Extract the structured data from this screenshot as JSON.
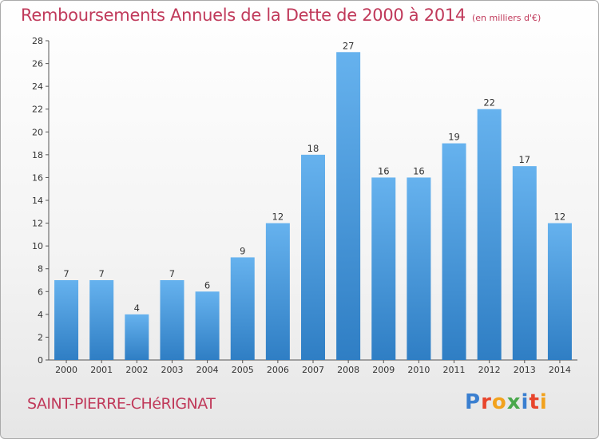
{
  "title": "Remboursements Annuels de la Dette de 2000 à 2014",
  "subtitle": "(en milliers d'€)",
  "commune": "SAINT-PIERRE-CHéRIGNAT",
  "logo": {
    "letters": [
      "P",
      "r",
      "o",
      "x",
      "i",
      "t",
      "i"
    ],
    "colors": [
      "#3a7fd0",
      "#e8452c",
      "#f2a21d",
      "#4aa84c",
      "#3a7fd0",
      "#e8452c",
      "#f2a21d"
    ]
  },
  "colors": {
    "bar_top": "#66b2ee",
    "bar_bottom": "#2f7ec4",
    "title": "#c0395a"
  },
  "chart_data": {
    "type": "bar",
    "categories": [
      "2000",
      "2001",
      "2002",
      "2003",
      "2004",
      "2005",
      "2006",
      "2007",
      "2008",
      "2009",
      "2010",
      "2011",
      "2012",
      "2013",
      "2014"
    ],
    "values": [
      7,
      7,
      4,
      7,
      6,
      9,
      12,
      18,
      27,
      16,
      16,
      19,
      22,
      17,
      12
    ],
    "title": "Remboursements Annuels de la Dette de 2000 à 2014",
    "ylim": [
      0,
      28
    ],
    "yticks": [
      0,
      2,
      4,
      6,
      8,
      10,
      12,
      14,
      16,
      18,
      20,
      22,
      24,
      26,
      28
    ],
    "grid": false,
    "legend": "none"
  }
}
